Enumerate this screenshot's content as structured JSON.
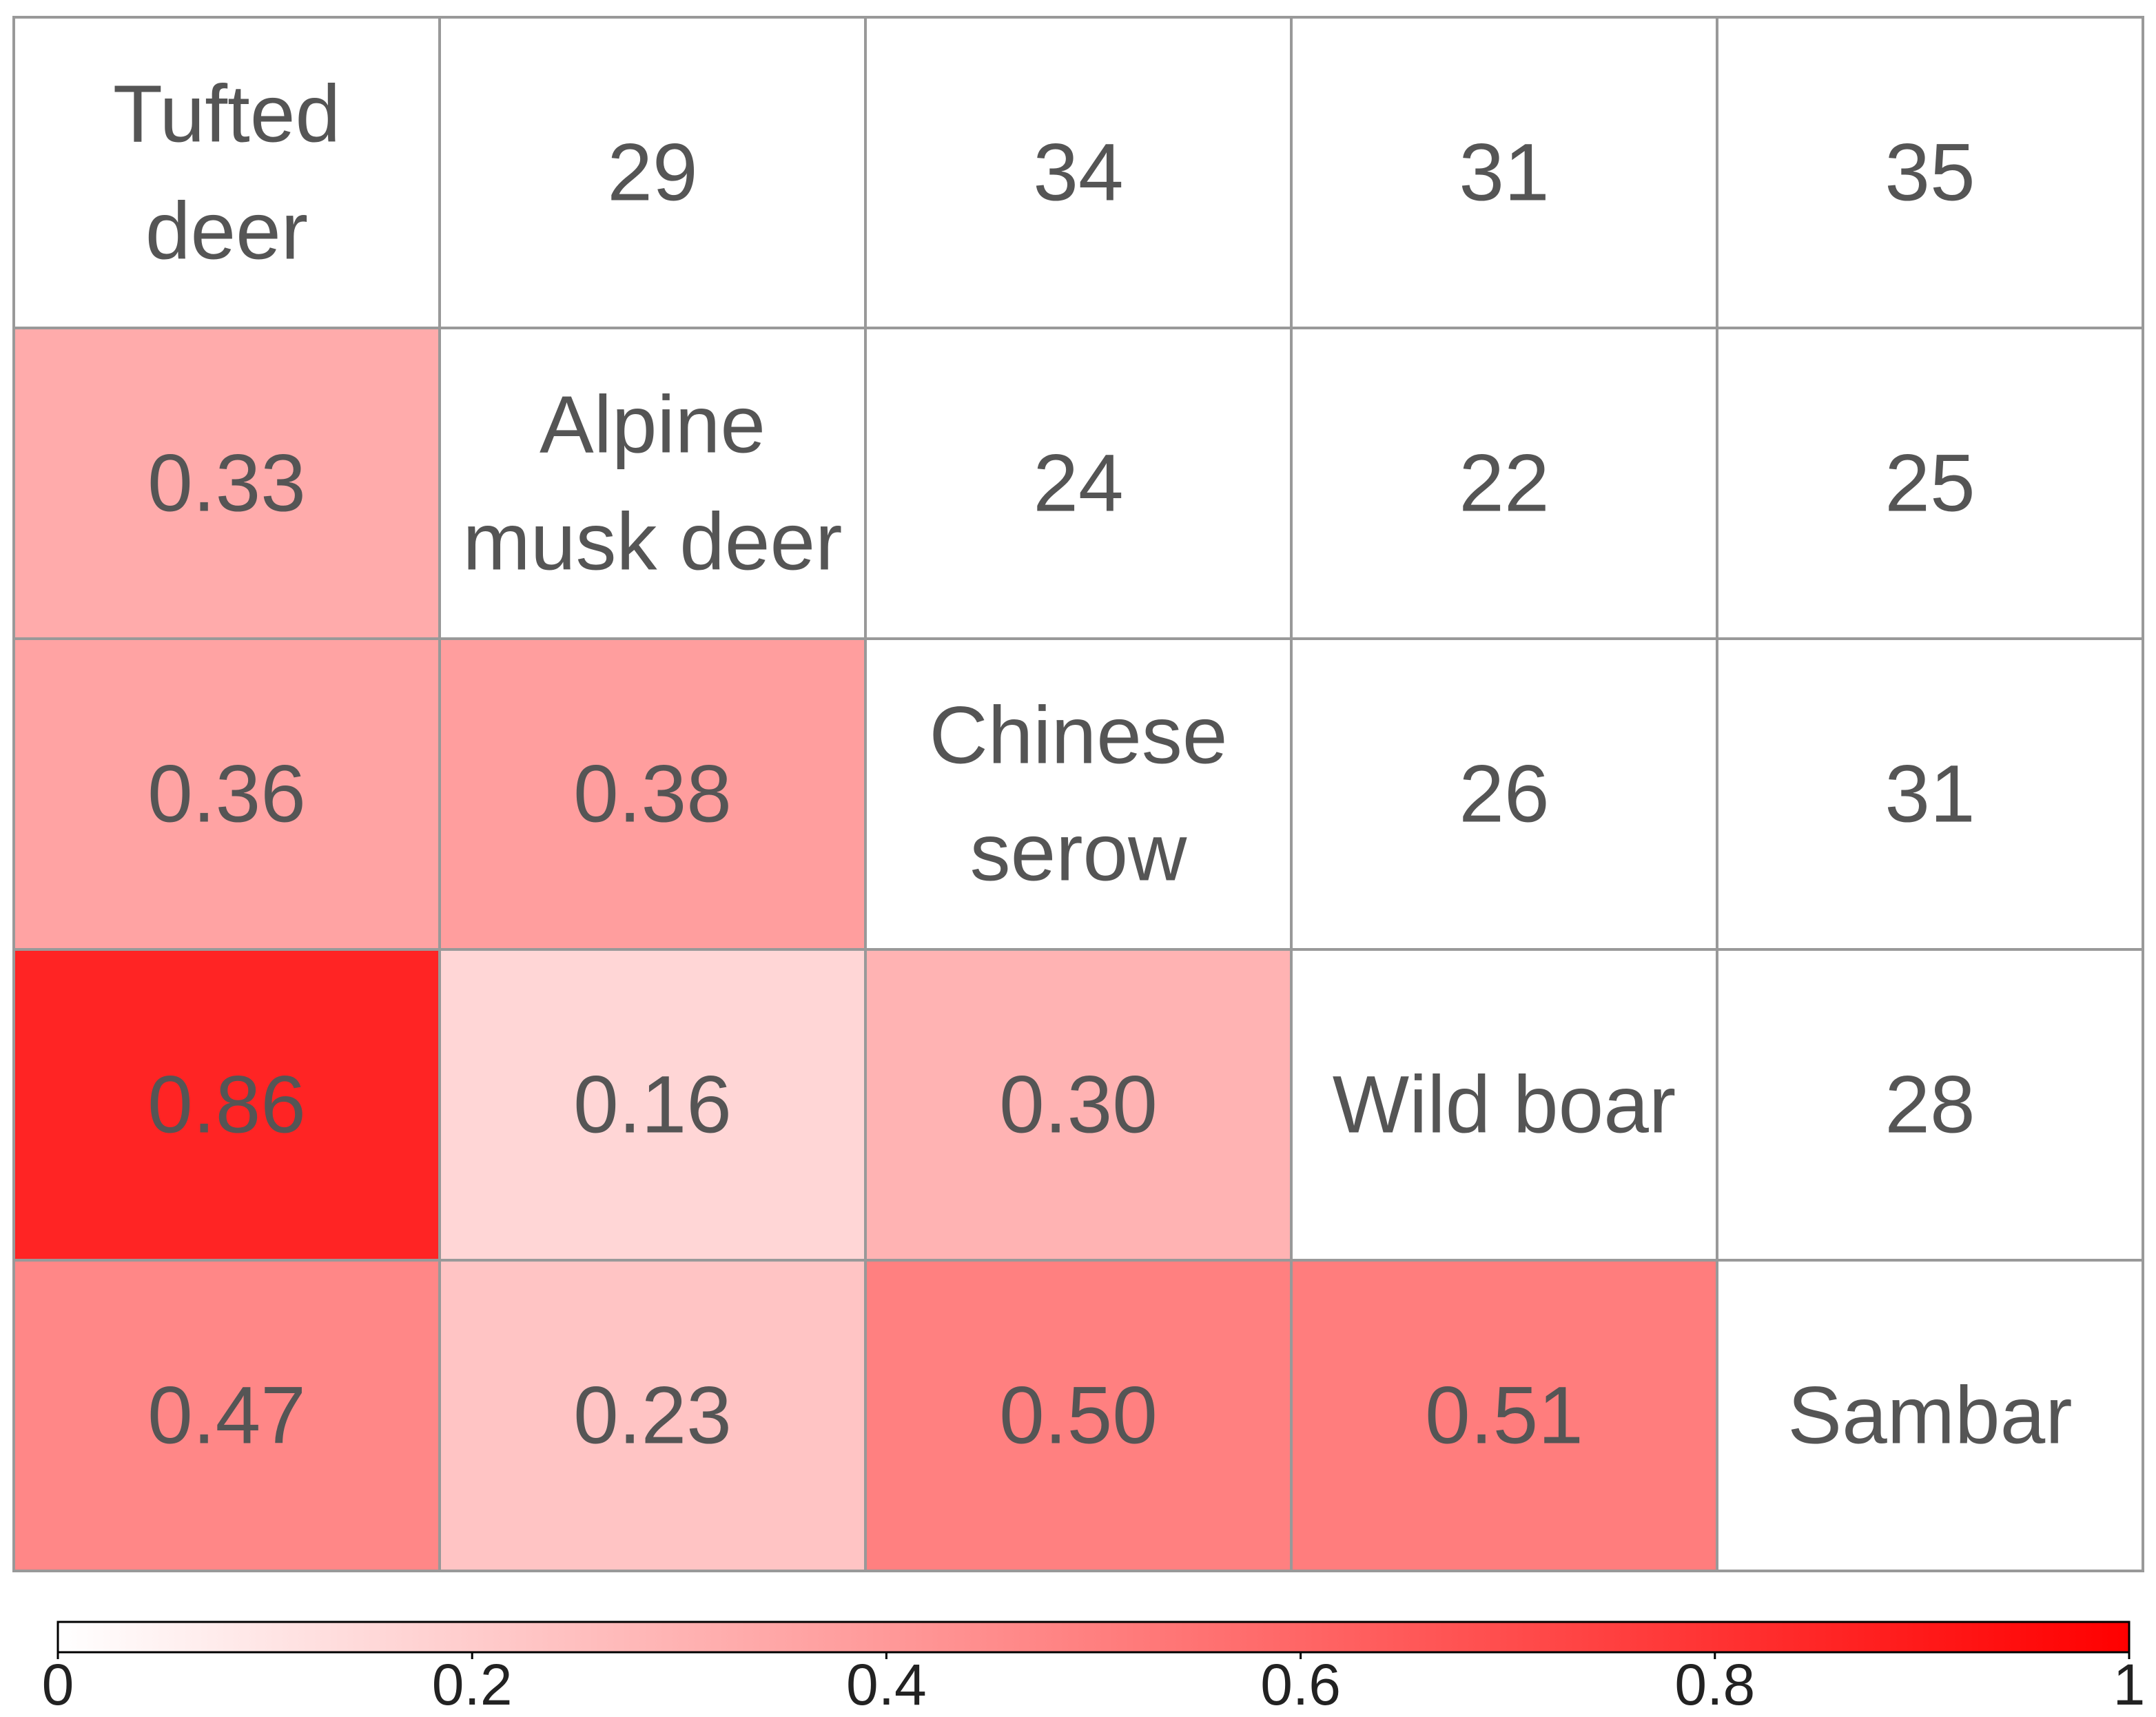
{
  "chart_data": {
    "type": "heatmap",
    "title": "",
    "species": [
      "Tufted deer",
      "Alpine musk deer",
      "Chinese serow",
      "Wild boar",
      "Sambar"
    ],
    "diagonal_labels": [
      [
        "Tufted",
        "deer"
      ],
      [
        "Alpine",
        "musk deer"
      ],
      [
        "Chinese",
        "serow"
      ],
      [
        "Wild boar"
      ],
      [
        "Sambar"
      ]
    ],
    "upper_values": [
      [
        "",
        "29",
        "34",
        "31",
        "35"
      ],
      [
        "",
        "",
        "24",
        "22",
        "25"
      ],
      [
        "",
        "",
        "",
        "26",
        "31"
      ],
      [
        "",
        "",
        "",
        "",
        "28"
      ],
      [
        "",
        "",
        "",
        "",
        ""
      ]
    ],
    "lower_values": [
      [
        null,
        null,
        null,
        null,
        null
      ],
      [
        0.33,
        null,
        null,
        null,
        null
      ],
      [
        0.36,
        0.38,
        null,
        null,
        null
      ],
      [
        0.86,
        0.16,
        0.3,
        null,
        null
      ],
      [
        0.47,
        0.23,
        0.5,
        0.51,
        null
      ]
    ],
    "lower_labels": [
      [
        "",
        "",
        "",
        "",
        ""
      ],
      [
        "0.33",
        "",
        "",
        "",
        ""
      ],
      [
        "0.36",
        "0.38",
        "",
        "",
        ""
      ],
      [
        "0.86",
        "0.16",
        "0.30",
        "",
        ""
      ],
      [
        "0.47",
        "0.23",
        "0.50",
        "0.51",
        ""
      ]
    ],
    "colorbar": {
      "range": [
        0,
        1
      ],
      "ticks": [
        0,
        0.2,
        0.4,
        0.6,
        0.8,
        1
      ],
      "tick_labels": [
        "0",
        "0.2",
        "0.4",
        "0.6",
        "0.8",
        "1"
      ],
      "color_low": "#ffffff",
      "color_high": "#ff0000"
    },
    "grid_color": "#999999",
    "text_color": "#555555"
  }
}
